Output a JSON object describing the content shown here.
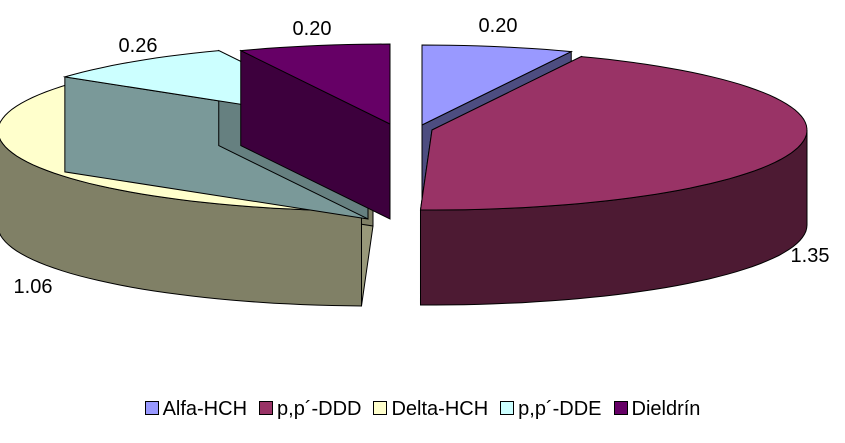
{
  "chart_data": {
    "type": "pie",
    "style": "3d exploded",
    "title": "",
    "legend_position": "bottom",
    "slices": [
      {
        "label": "Alfa-HCH",
        "value": 0.2,
        "value_label": "0.20",
        "color": "#9999ff"
      },
      {
        "label": "p,p´-DDD",
        "value": 1.35,
        "value_label": "1.35",
        "color": "#993366"
      },
      {
        "label": "Delta-HCH",
        "value": 1.06,
        "value_label": "1.06",
        "color": "#ffffcc"
      },
      {
        "label": "p,p´-DDE",
        "value": 0.26,
        "value_label": "0.26",
        "color": "#ccffff"
      },
      {
        "label": "Dieldrín",
        "value": 0.2,
        "value_label": "0.20",
        "color": "#660066"
      }
    ]
  }
}
